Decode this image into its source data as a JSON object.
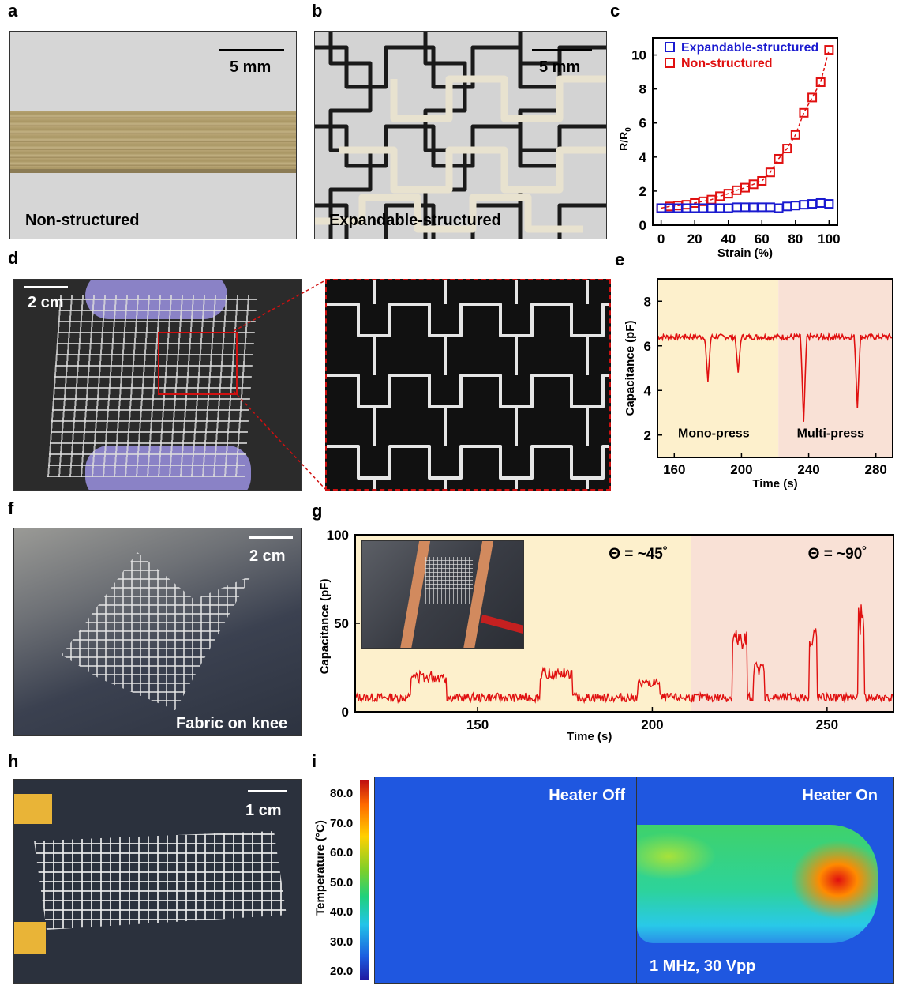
{
  "panels": {
    "a": {
      "letter": "a",
      "scale": "5 mm",
      "caption": "Non-structured"
    },
    "b": {
      "letter": "b",
      "scale": "5 mm",
      "caption": "Expandable-structured"
    },
    "c": {
      "letter": "c"
    },
    "d": {
      "letter": "d",
      "scale": "2 cm"
    },
    "e": {
      "letter": "e",
      "left_region": "Mono-press",
      "right_region": "Multi-press"
    },
    "f": {
      "letter": "f",
      "scale": "2 cm",
      "caption": "Fabric on knee"
    },
    "g": {
      "letter": "g",
      "angle1": "Θ = ~45˚",
      "angle2": "Θ = ~90˚"
    },
    "h": {
      "letter": "h",
      "scale": "1 cm"
    },
    "i": {
      "letter": "i",
      "left_title": "Heater Off",
      "right_title": "Heater On",
      "condition": "1 MHz, 30 Vpp",
      "colorbar_label": "Temperature (°C)",
      "colorbar_ticks": [
        "80.0",
        "70.0",
        "60.0",
        "50.0",
        "40.0",
        "30.0",
        "20.0"
      ]
    }
  },
  "colors": {
    "blue": "#1a1ad0",
    "red": "#e01010",
    "yellow_bg": "#fdf0cc",
    "pink_bg": "#f9e1d6"
  },
  "chart_data": [
    {
      "id": "c",
      "type": "scatter",
      "xlabel": "Strain (%)",
      "ylabel": "R/R0",
      "xlim": [
        -5,
        105
      ],
      "ylim": [
        0,
        11
      ],
      "xticks": [
        0,
        20,
        40,
        60,
        80,
        100
      ],
      "yticks": [
        0,
        2,
        4,
        6,
        8,
        10
      ],
      "legend": "top-left",
      "series": [
        {
          "name": "Expandable-structured",
          "color": "#1a1ad0",
          "x": [
            0,
            5,
            10,
            15,
            20,
            25,
            30,
            35,
            40,
            45,
            50,
            55,
            60,
            65,
            70,
            75,
            80,
            85,
            90,
            95,
            100
          ],
          "y": [
            1.0,
            1.0,
            1.0,
            1.0,
            1.0,
            1.0,
            1.0,
            1.0,
            1.0,
            1.05,
            1.05,
            1.05,
            1.05,
            1.05,
            1.0,
            1.1,
            1.15,
            1.2,
            1.25,
            1.3,
            1.25
          ]
        },
        {
          "name": "Non-structured",
          "color": "#e01010",
          "x": [
            0,
            5,
            10,
            15,
            20,
            25,
            30,
            35,
            40,
            45,
            50,
            55,
            60,
            65,
            70,
            75,
            80,
            85,
            90,
            95,
            100
          ],
          "y": [
            1.0,
            1.1,
            1.15,
            1.2,
            1.3,
            1.4,
            1.5,
            1.7,
            1.85,
            2.05,
            2.2,
            2.4,
            2.6,
            3.1,
            3.9,
            4.5,
            5.3,
            6.6,
            7.5,
            8.4,
            10.3
          ]
        }
      ]
    },
    {
      "id": "e",
      "type": "line",
      "xlabel": "Time (s)",
      "ylabel": "Capacitance (pF)",
      "xlim": [
        150,
        290
      ],
      "ylim": [
        1,
        9
      ],
      "xticks": [
        160,
        200,
        240,
        280
      ],
      "yticks": [
        2,
        4,
        6,
        8
      ],
      "region_split": 222,
      "baseline": 6.4,
      "dips": [
        {
          "t": 180,
          "min": 4.4
        },
        {
          "t": 198,
          "min": 4.8
        },
        {
          "t": 237,
          "min": 2.6
        },
        {
          "t": 269,
          "min": 3.2
        }
      ]
    },
    {
      "id": "g",
      "type": "line",
      "xlabel": "Time (s)",
      "ylabel": "Capacitance (pF)",
      "xlim": [
        115,
        269
      ],
      "ylim": [
        0,
        100
      ],
      "xticks": [
        150,
        200,
        250
      ],
      "yticks": [
        0,
        50,
        100
      ],
      "region_split": 211,
      "baseline": 8,
      "peaks": [
        {
          "t0": 131,
          "t1": 141,
          "v": 22
        },
        {
          "t0": 168,
          "t1": 177,
          "v": 24
        },
        {
          "t0": 196,
          "t1": 202,
          "v": 18
        },
        {
          "t0": 223,
          "t1": 227,
          "v": 45
        },
        {
          "t0": 229,
          "t1": 232,
          "v": 27
        },
        {
          "t0": 245,
          "t1": 247,
          "v": 48
        },
        {
          "t0": 259,
          "t1": 260.5,
          "v": 58
        }
      ]
    }
  ]
}
